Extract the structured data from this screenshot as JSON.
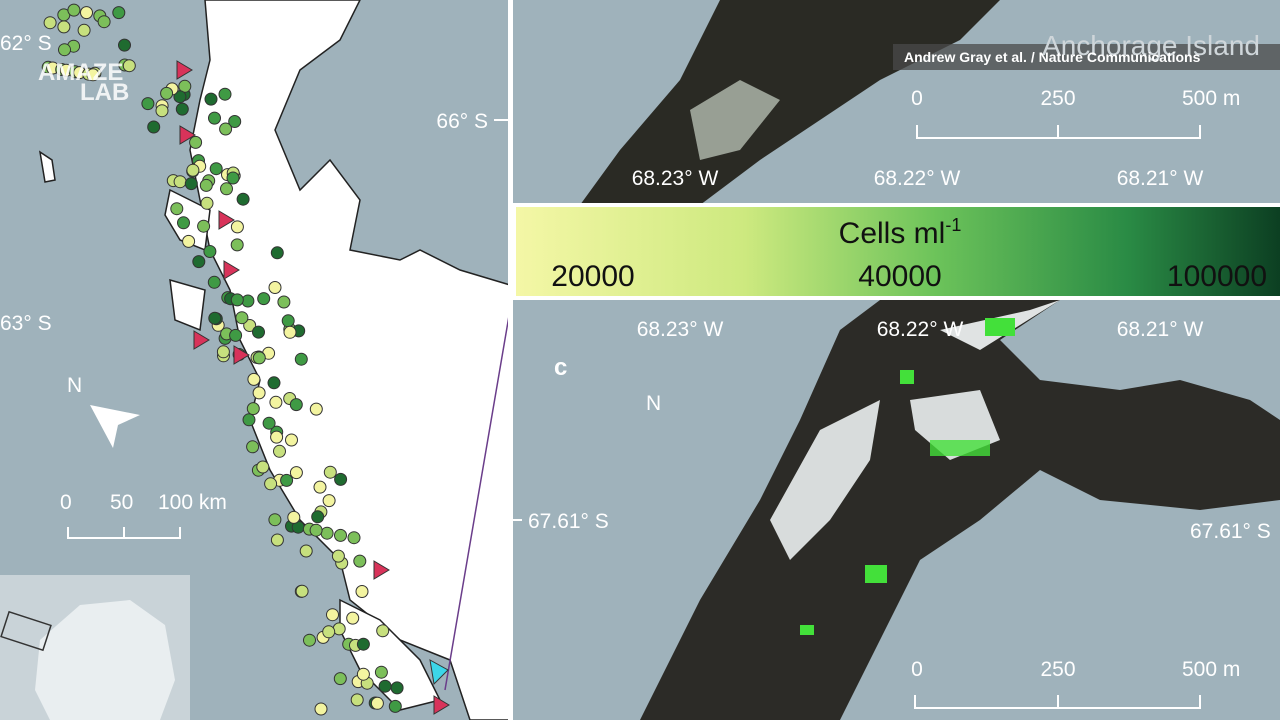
{
  "logo": {
    "line1": "AMAZE",
    "line2": "LAB"
  },
  "left_map": {
    "latitude_labels": [
      "62° S",
      "63° S"
    ],
    "north": "N",
    "scale": [
      "0",
      "50",
      "100 km"
    ]
  },
  "right_map": {
    "credit": "Andrew Gray et al. / Nature Communications",
    "title": "Anchorage Island",
    "panel_label": "c",
    "north": "N",
    "latitude_labels": [
      "66° S",
      "67.61° S",
      "67.61° S"
    ],
    "top_panel": {
      "scale": [
        "0",
        "250",
        "500 m"
      ],
      "longitude_labels": [
        "68.23° W",
        "68.22° W",
        "68.21° W"
      ]
    },
    "bottom_panel": {
      "scale": [
        "0",
        "250",
        "500 m"
      ],
      "longitude_labels": [
        "68.23° W",
        "68.22° W",
        "68.21° W"
      ]
    }
  },
  "colorbar": {
    "label": "Cells ml",
    "label_exponent": "-1",
    "ticks": [
      "20000",
      "40000",
      "100000"
    ]
  }
}
